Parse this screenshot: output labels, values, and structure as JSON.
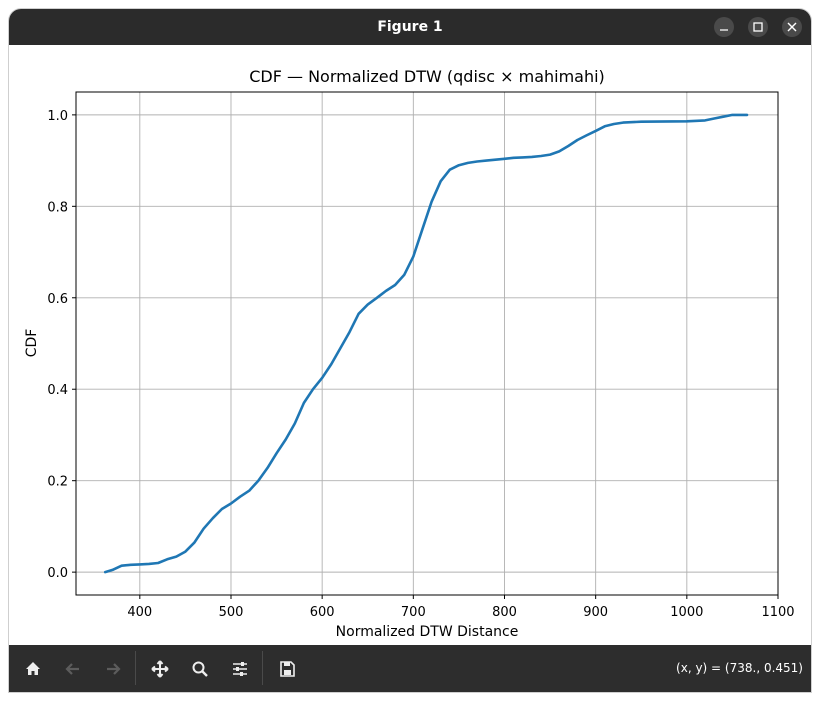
{
  "window": {
    "title": "Figure 1"
  },
  "toolbar": {
    "items": [
      "home-icon",
      "back-icon",
      "forward-icon",
      "pan-icon",
      "zoom-icon",
      "configure-icon",
      "save-icon"
    ],
    "coords": "(x, y) = (738., 0.451)"
  },
  "colors": {
    "line": "#1f77b4",
    "titlebar": "#2b2b2b",
    "toolbar": "#2d2d2d",
    "grid": "#b0b0b0"
  },
  "chart_data": {
    "type": "line",
    "title": "CDF — Normalized DTW (qdisc × mahimahi)",
    "xlabel": "Normalized DTW Distance",
    "ylabel": "CDF",
    "xlim": [
      330,
      1100
    ],
    "ylim": [
      -0.05,
      1.05
    ],
    "xticks": [
      400,
      500,
      600,
      700,
      800,
      900,
      1000,
      1100
    ],
    "yticks": [
      0.0,
      0.2,
      0.4,
      0.6,
      0.8,
      1.0
    ],
    "grid": true,
    "series": [
      {
        "x": [
          362,
          370,
          380,
          390,
          400,
          410,
          420,
          430,
          440,
          450,
          460,
          470,
          480,
          490,
          500,
          510,
          520,
          530,
          540,
          550,
          560,
          570,
          580,
          590,
          600,
          610,
          620,
          630,
          640,
          650,
          660,
          670,
          680,
          690,
          700,
          710,
          720,
          730,
          740,
          750,
          760,
          770,
          780,
          790,
          800,
          810,
          820,
          830,
          840,
          850,
          860,
          870,
          880,
          890,
          900,
          910,
          920,
          930,
          950,
          1000,
          1020,
          1030,
          1040,
          1050,
          1066
        ],
        "y": [
          0.0,
          0.005,
          0.014,
          0.016,
          0.017,
          0.018,
          0.02,
          0.028,
          0.034,
          0.045,
          0.065,
          0.095,
          0.118,
          0.138,
          0.15,
          0.165,
          0.178,
          0.2,
          0.228,
          0.26,
          0.29,
          0.325,
          0.37,
          0.4,
          0.425,
          0.455,
          0.49,
          0.525,
          0.565,
          0.585,
          0.6,
          0.615,
          0.628,
          0.65,
          0.69,
          0.75,
          0.81,
          0.855,
          0.88,
          0.89,
          0.895,
          0.898,
          0.9,
          0.902,
          0.904,
          0.906,
          0.907,
          0.908,
          0.91,
          0.913,
          0.92,
          0.932,
          0.945,
          0.955,
          0.965,
          0.975,
          0.98,
          0.983,
          0.985,
          0.986,
          0.988,
          0.992,
          0.996,
          1.0,
          1.0
        ]
      }
    ]
  }
}
